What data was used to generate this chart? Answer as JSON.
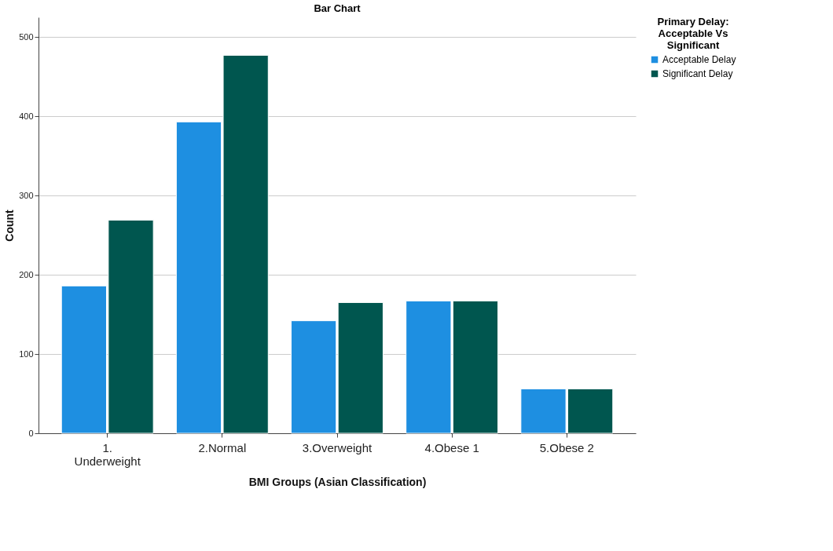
{
  "chart_data": {
    "type": "bar",
    "title": "Bar Chart",
    "xlabel": "BMI Groups (Asian Classification)",
    "ylabel": "Count",
    "legend_title": "Primary Delay:\nAcceptable Vs\nSignificant",
    "categories": [
      "1.\nUnderweight",
      "2.Normal",
      "3.Overweight",
      "4.Obese 1",
      "5.Obese 2"
    ],
    "series": [
      {
        "name": "Acceptable Delay",
        "color": "#1e8fe1",
        "values": [
          186,
          393,
          142,
          167,
          56
        ]
      },
      {
        "name": "Significant Delay",
        "color": "#00564f",
        "values": [
          269,
          477,
          165,
          167,
          56
        ]
      }
    ],
    "ylim": [
      0,
      525
    ],
    "yticks": [
      0,
      100,
      200,
      300,
      400,
      500
    ],
    "grid": "y",
    "legend": "top right"
  }
}
